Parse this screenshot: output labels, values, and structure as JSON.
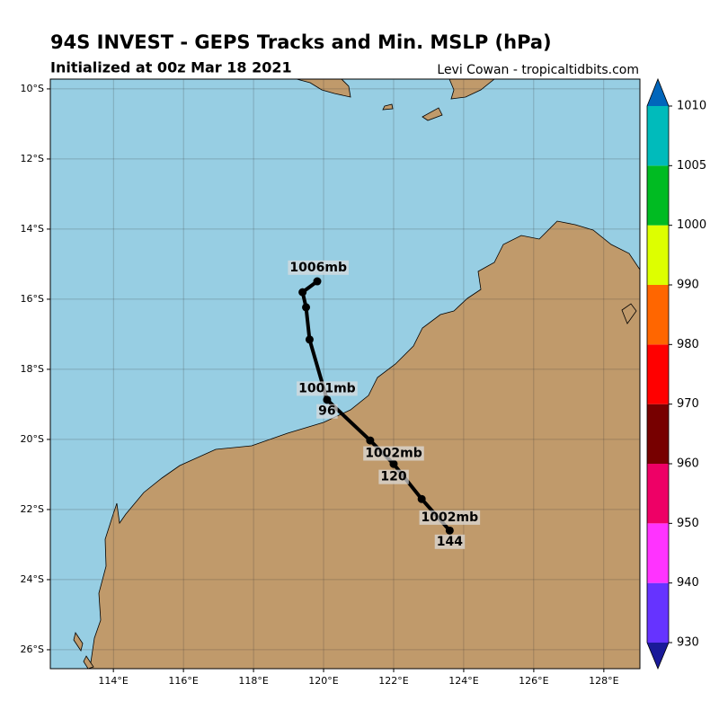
{
  "chart_data": {
    "type": "track-map",
    "title": "94S INVEST - GEPS Tracks and Min. MSLP (hPa)",
    "subtitle": "Initialized at 00z Mar 18 2021",
    "credit": "Levi Cowan - tropicaltidbits.com",
    "xlim": [
      112.2,
      129.03
    ],
    "ylim": [
      -26.54,
      -9.72
    ],
    "xticks": [
      {
        "value": 114,
        "label": "114°E"
      },
      {
        "value": 116,
        "label": "116°E"
      },
      {
        "value": 118,
        "label": "118°E"
      },
      {
        "value": 120,
        "label": "120°E"
      },
      {
        "value": 122,
        "label": "122°E"
      },
      {
        "value": 124,
        "label": "124°E"
      },
      {
        "value": 126,
        "label": "126°E"
      },
      {
        "value": 128,
        "label": "128°E"
      }
    ],
    "yticks": [
      {
        "value": -10,
        "label": "10°S"
      },
      {
        "value": -12,
        "label": "12°S"
      },
      {
        "value": -14,
        "label": "14°S"
      },
      {
        "value": -16,
        "label": "16°S"
      },
      {
        "value": -18,
        "label": "18°S"
      },
      {
        "value": -20,
        "label": "20°S"
      },
      {
        "value": -22,
        "label": "22°S"
      },
      {
        "value": -24,
        "label": "24°S"
      },
      {
        "value": -26,
        "label": "26°S"
      }
    ],
    "grid": true,
    "mean_track": {
      "color": "#000000",
      "lon": [
        119.82,
        119.4,
        119.5,
        119.6,
        120.1,
        121.33,
        122.0,
        122.8,
        123.6
      ],
      "lat": [
        -15.49,
        -15.8,
        -16.23,
        -17.15,
        -18.87,
        -20.03,
        -20.7,
        -21.7,
        -22.6
      ]
    },
    "labels": [
      {
        "text": "1006mb",
        "lon": 119.85,
        "lat": -15.1
      },
      {
        "text": "1001mb",
        "lon": 120.1,
        "lat": -18.55
      },
      {
        "text": "96",
        "lon": 120.1,
        "lat": -19.2
      },
      {
        "text": "1002mb",
        "lon": 122.0,
        "lat": -20.4
      },
      {
        "text": "120",
        "lon": 122.0,
        "lat": -21.07
      },
      {
        "text": "1002mb",
        "lon": 123.6,
        "lat": -22.23
      },
      {
        "text": "144",
        "lon": 123.6,
        "lat": -22.92
      }
    ],
    "colorbar": {
      "ticks": [
        930,
        940,
        950,
        960,
        970,
        980,
        990,
        1000,
        1005,
        1010
      ],
      "colors": [
        "#6633ff",
        "#ff33ff",
        "#ee0066",
        "#770000",
        "#ff0000",
        "#ff6600",
        "#ddff00",
        "#00bb22",
        "#00bbbb"
      ],
      "under_color": "#1a1a99",
      "over_color": "#0066bb"
    }
  }
}
